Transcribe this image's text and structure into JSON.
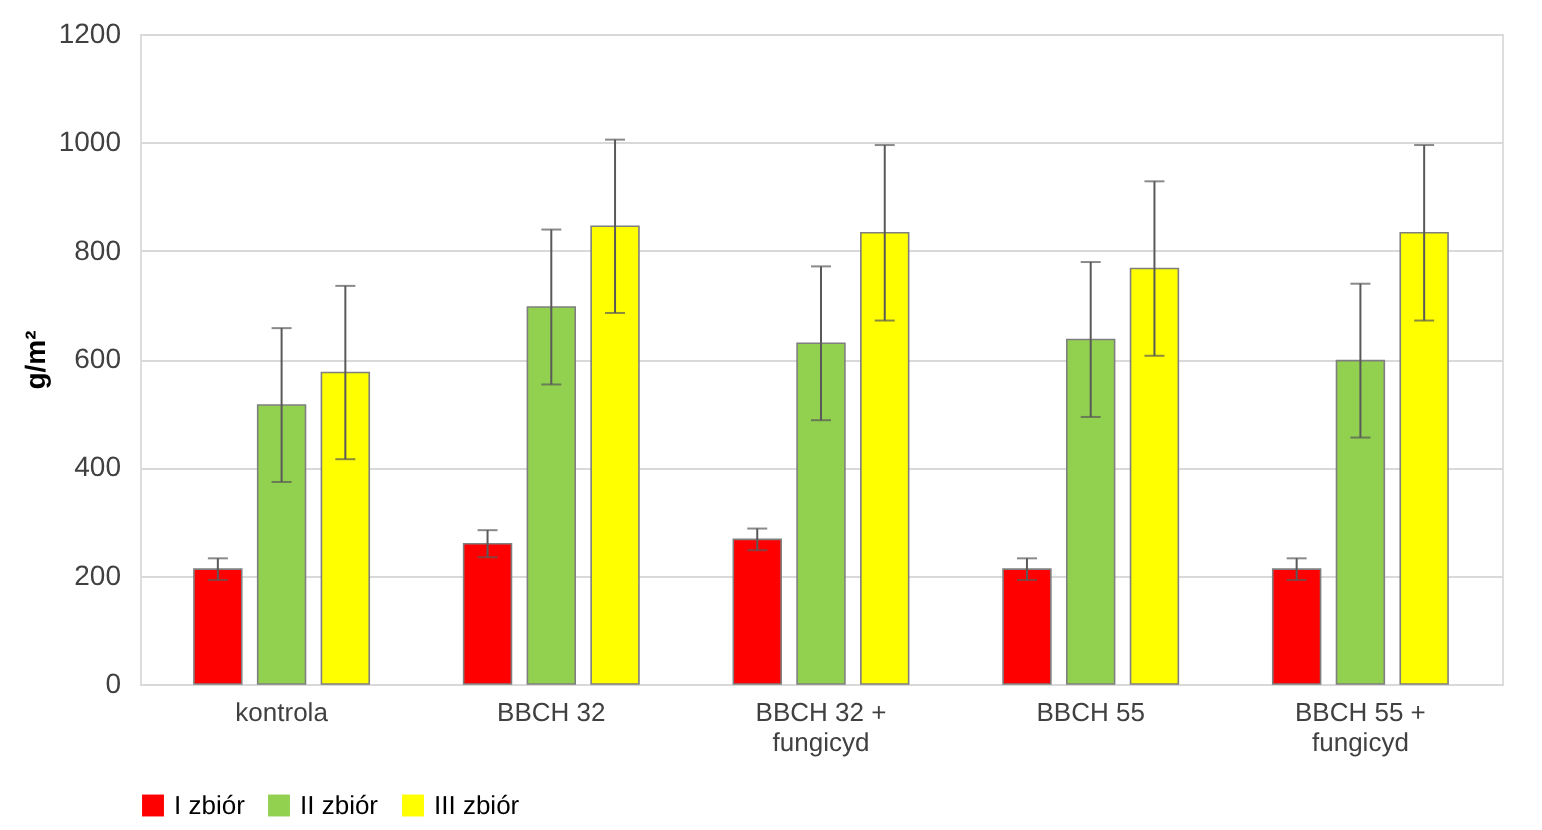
{
  "chart_data": {
    "type": "bar",
    "ylabel": "g/m²",
    "categories": [
      "kontrola",
      "BBCH 32",
      "BBCH 32 + fungicyd",
      "BBCH 55",
      "BBCH 55 + fungicyd"
    ],
    "series": [
      {
        "name": "I zbiór",
        "color": "#ff0000",
        "values": [
          212,
          259,
          267,
          212,
          212
        ],
        "errors": [
          20,
          25,
          20,
          20,
          20
        ]
      },
      {
        "name": "II zbiór",
        "color": "#92d050",
        "values": [
          515,
          696,
          629,
          636,
          597
        ],
        "errors": [
          142,
          143,
          142,
          143,
          142
        ]
      },
      {
        "name": "III zbiór",
        "color": "#ffff00",
        "values": [
          575,
          845,
          833,
          767,
          833
        ],
        "errors": [
          160,
          160,
          162,
          161,
          162
        ]
      }
    ],
    "ylim": [
      0,
      1200
    ],
    "yticks": [
      0,
      200,
      400,
      600,
      800,
      1000,
      1200
    ],
    "grid": "y",
    "legend": "bottom"
  }
}
